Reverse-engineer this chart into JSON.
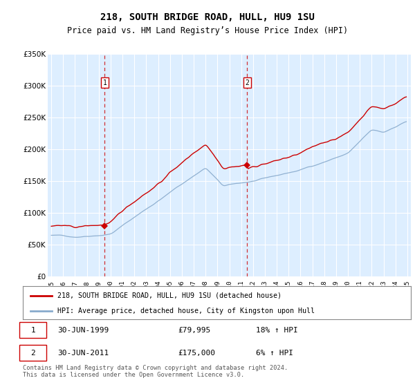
{
  "title": "218, SOUTH BRIDGE ROAD, HULL, HU9 1SU",
  "subtitle": "Price paid vs. HM Land Registry’s House Price Index (HPI)",
  "legend_line1": "218, SOUTH BRIDGE ROAD, HULL, HU9 1SU (detached house)",
  "legend_line2": "HPI: Average price, detached house, City of Kingston upon Hull",
  "transaction1_date": "30-JUN-1999",
  "transaction1_price": "£79,995",
  "transaction1_hpi": "18% ↑ HPI",
  "transaction1_year": 1999.5,
  "transaction1_value": 79995,
  "transaction2_date": "30-JUN-2011",
  "transaction2_price": "£175,000",
  "transaction2_hpi": "6% ↑ HPI",
  "transaction2_year": 2011.5,
  "transaction2_value": 175000,
  "footer": "Contains HM Land Registry data © Crown copyright and database right 2024.\nThis data is licensed under the Open Government Licence v3.0.",
  "red_color": "#cc0000",
  "blue_color": "#88aacc",
  "background_color": "#ddeeff",
  "plot_bg": "#ffffff",
  "ylim": [
    0,
    350000
  ],
  "xlim_start": 1994.7,
  "xlim_end": 2025.3
}
